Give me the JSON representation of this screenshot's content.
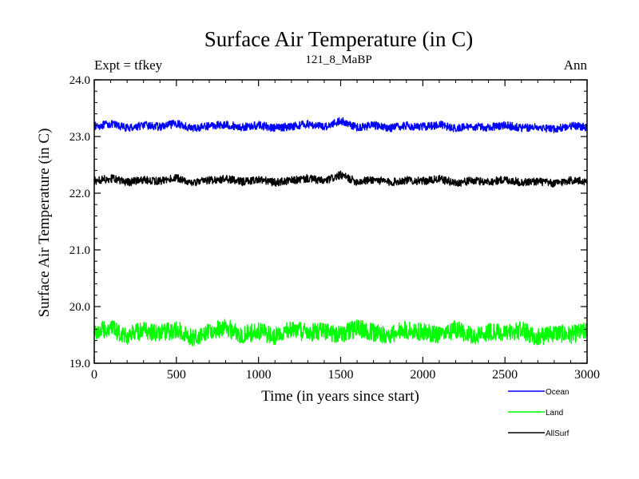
{
  "chart_data": {
    "type": "line",
    "title": "Surface Air Temperature (in C)",
    "subtitle": "121_8_MaBP",
    "left_label": "Expt = tfkey",
    "right_label": "Ann",
    "xlabel": "Time (in years since start)",
    "ylabel": "Surface Air Temperature (in C)",
    "xlim": [
      0,
      3000
    ],
    "ylim": [
      19.0,
      24.0
    ],
    "x_ticks": [
      0,
      500,
      1000,
      1500,
      2000,
      2500,
      3000
    ],
    "y_ticks": [
      19.0,
      20.0,
      21.0,
      22.0,
      23.0,
      24.0
    ],
    "x_tick_labels": [
      "0",
      "500",
      "1000",
      "1500",
      "2000",
      "2500",
      "3000"
    ],
    "y_tick_labels": [
      "19.0",
      "20.0",
      "21.0",
      "22.0",
      "23.0",
      "24.0"
    ],
    "grid": false,
    "legend_position": "bottom-right",
    "series": [
      {
        "name": "Ocean",
        "color": "#0000ff",
        "x": [
          0,
          100,
          200,
          300,
          400,
          500,
          600,
          700,
          800,
          900,
          1000,
          1100,
          1200,
          1300,
          1400,
          1500,
          1600,
          1700,
          1800,
          1900,
          2000,
          2100,
          2200,
          2300,
          2400,
          2500,
          2600,
          2700,
          2800,
          2900,
          3000
        ],
        "values": [
          23.18,
          23.22,
          23.15,
          23.2,
          23.17,
          23.23,
          23.14,
          23.19,
          23.21,
          23.16,
          23.2,
          23.15,
          23.18,
          23.22,
          23.17,
          23.28,
          23.16,
          23.2,
          23.15,
          23.19,
          23.17,
          23.21,
          23.14,
          23.18,
          23.16,
          23.2,
          23.15,
          23.17,
          23.13,
          23.19,
          23.16
        ]
      },
      {
        "name": "Land",
        "color": "#00ff00",
        "x": [
          0,
          100,
          200,
          300,
          400,
          500,
          600,
          700,
          800,
          900,
          1000,
          1100,
          1200,
          1300,
          1400,
          1500,
          1600,
          1700,
          1800,
          1900,
          2000,
          2100,
          2200,
          2300,
          2400,
          2500,
          2600,
          2700,
          2800,
          2900,
          3000
        ],
        "values": [
          19.55,
          19.62,
          19.48,
          19.58,
          19.52,
          19.6,
          19.45,
          19.57,
          19.63,
          19.5,
          19.56,
          19.47,
          19.61,
          19.53,
          19.58,
          19.5,
          19.62,
          19.54,
          19.49,
          19.59,
          19.55,
          19.51,
          19.6,
          19.48,
          19.56,
          19.52,
          19.58,
          19.46,
          19.54,
          19.5,
          19.57
        ]
      },
      {
        "name": "AllSurf",
        "color": "#000000",
        "x": [
          0,
          100,
          200,
          300,
          400,
          500,
          600,
          700,
          800,
          900,
          1000,
          1100,
          1200,
          1300,
          1400,
          1500,
          1600,
          1700,
          1800,
          1900,
          2000,
          2100,
          2200,
          2300,
          2400,
          2500,
          2600,
          2700,
          2800,
          2900,
          3000
        ],
        "values": [
          22.22,
          22.26,
          22.19,
          22.24,
          22.21,
          22.27,
          22.18,
          22.23,
          22.25,
          22.2,
          22.24,
          22.19,
          22.22,
          22.26,
          22.21,
          22.32,
          22.2,
          22.24,
          22.19,
          22.23,
          22.21,
          22.25,
          22.18,
          22.22,
          22.2,
          22.24,
          22.19,
          22.21,
          22.17,
          22.23,
          22.2
        ]
      }
    ]
  }
}
